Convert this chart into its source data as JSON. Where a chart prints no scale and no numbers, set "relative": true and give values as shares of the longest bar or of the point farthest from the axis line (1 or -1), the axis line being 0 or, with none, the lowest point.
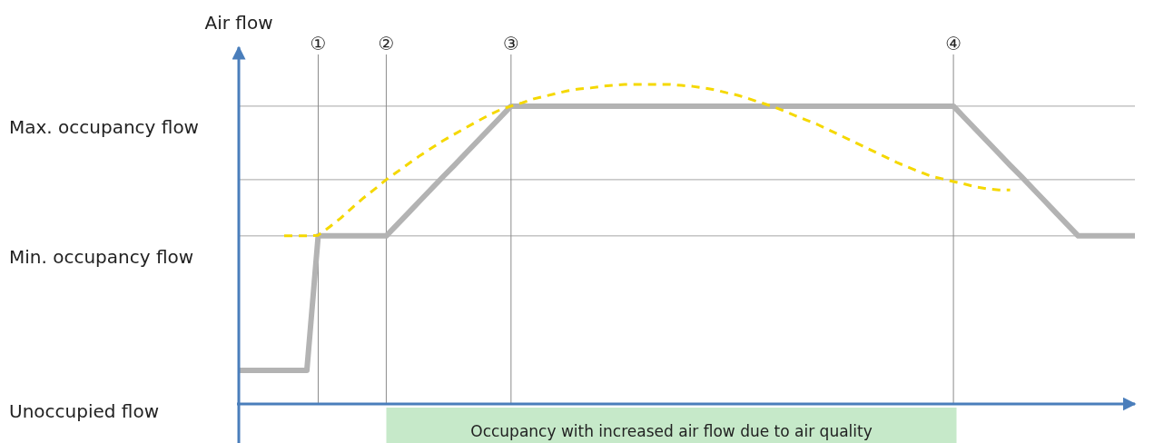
{
  "chart_data": {
    "type": "line",
    "relative": true,
    "ylabel": "Air flow",
    "grid": "x",
    "categories": [
      null,
      null,
      null,
      null,
      null,
      null,
      null,
      "①",
      null,
      null,
      null,
      null,
      null,
      "②",
      null,
      null,
      null,
      null,
      null,
      null,
      null,
      null,
      null,
      null,
      "③",
      null,
      null,
      null,
      null,
      null,
      null,
      null,
      null,
      null,
      null,
      null,
      null,
      null,
      null,
      null,
      null,
      null,
      null,
      null,
      null,
      null,
      null,
      null,
      null,
      null,
      null,
      null,
      null,
      null,
      null,
      null,
      null,
      null,
      null,
      null,
      null,
      null,
      null,
      "④",
      null,
      null,
      null,
      null,
      null,
      null,
      null,
      null,
      null,
      null,
      null,
      null,
      null,
      null,
      null,
      null
    ],
    "annotations": [
      "Unoccupied flow",
      "Occupancy with increased air flow due to air quality"
    ],
    "ref_lines": [
      {
        "axis": "y",
        "value": 0.932,
        "label": "Max. occupancy flow",
        "color": "#a6a6a6"
      },
      {
        "axis": "y",
        "value": 0.702,
        "color": "#a6a6a6"
      },
      {
        "axis": "y",
        "value": 0.526,
        "label": "Min. occupancy flow",
        "color": "#a6a6a6"
      }
    ],
    "series": [
      {
        "color": "#b3b3b3",
        "line_style": "solid",
        "values": [
          0.105,
          0.105,
          0.105,
          0.105,
          0.105,
          0.105,
          0.105,
          0.526,
          0.526,
          0.526,
          0.526,
          0.526,
          0.526,
          0.526,
          0.563,
          0.6,
          0.637,
          0.674,
          0.711,
          0.747,
          0.784,
          0.821,
          0.858,
          0.895,
          0.932,
          0.932,
          0.932,
          0.932,
          0.932,
          0.932,
          0.932,
          0.932,
          0.932,
          0.932,
          0.932,
          0.932,
          0.932,
          0.932,
          0.932,
          0.932,
          0.932,
          0.932,
          0.932,
          0.932,
          0.932,
          0.932,
          0.932,
          0.932,
          0.932,
          0.932,
          0.932,
          0.932,
          0.932,
          0.932,
          0.932,
          0.932,
          0.932,
          0.932,
          0.932,
          0.932,
          0.932,
          0.932,
          0.932,
          0.932,
          0.895,
          0.858,
          0.821,
          0.784,
          0.747,
          0.711,
          0.674,
          0.637,
          0.6,
          0.563,
          0.526,
          0.526,
          0.526,
          0.526,
          0.526,
          0.526
        ]
      },
      {
        "color": "#f5d800",
        "line_style": "dashed",
        "values": [
          null,
          null,
          null,
          null,
          0.526,
          0.526,
          0.526,
          0.528,
          0.554,
          0.582,
          0.614,
          0.645,
          0.673,
          0.702,
          0.727,
          0.753,
          0.778,
          0.801,
          0.824,
          0.844,
          0.864,
          0.884,
          0.903,
          0.92,
          0.932,
          0.943,
          0.955,
          0.963,
          0.972,
          0.98,
          0.986,
          0.989,
          0.994,
          0.997,
          1,
          1,
          1,
          1,
          1,
          0.997,
          0.994,
          0.989,
          0.983,
          0.974,
          0.966,
          0.955,
          0.943,
          0.932,
          0.918,
          0.903,
          0.889,
          0.875,
          0.858,
          0.841,
          0.824,
          0.807,
          0.79,
          0.773,
          0.756,
          0.741,
          0.727,
          0.713,
          0.705,
          0.696,
          0.688,
          0.679,
          0.673,
          0.67,
          0.67,
          null,
          null,
          null,
          null,
          null,
          null,
          null,
          null,
          null,
          null,
          null
        ]
      }
    ]
  }
}
